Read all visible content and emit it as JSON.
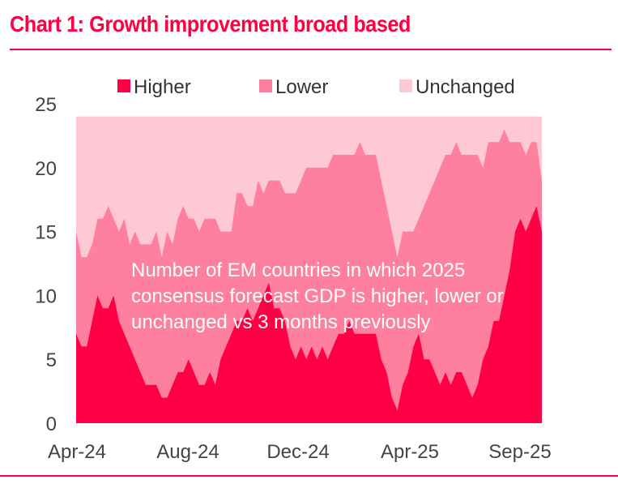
{
  "title": "Chart 1: Growth improvement broad based",
  "colors": {
    "accent": "#ff0044",
    "higher": "#ff0044",
    "lower": "#ff809e",
    "unchanged": "#ffc8d5",
    "axis_text": "#444444"
  },
  "chart_data": {
    "type": "area",
    "stacked": true,
    "title": "Chart 1: Growth improvement broad based",
    "xlabel": "",
    "ylabel": "",
    "ylim": [
      0,
      25
    ],
    "yticks": [
      0,
      5,
      10,
      15,
      20,
      25
    ],
    "xtick_labels": [
      "Apr-24",
      "Aug-24",
      "Dec-24",
      "Apr-25",
      "Sep-25"
    ],
    "xtick_positions": [
      0,
      0.222,
      0.444,
      0.667,
      0.944
    ],
    "legend": [
      "Higher",
      "Lower",
      "Unchanged"
    ],
    "legend_position": "top",
    "grid": false,
    "annotation": [
      "Number of EM countries in which 2025",
      "consensus forecast GDP is higher, lower or",
      "unchanged vs 3 months previously"
    ],
    "total": 24,
    "series": [
      {
        "name": "Higher",
        "values": [
          7,
          6,
          6,
          8,
          10,
          9,
          9,
          10,
          8,
          7,
          6,
          5,
          4,
          3,
          3,
          3,
          2,
          2,
          3,
          4,
          4,
          5,
          4,
          3,
          3,
          4,
          3,
          5,
          6,
          7,
          8,
          8,
          9,
          8,
          9,
          10,
          11,
          9,
          9,
          8,
          6,
          5,
          6,
          5,
          6,
          5,
          6,
          5,
          6,
          7,
          7,
          8,
          7,
          7,
          7,
          7,
          7,
          5,
          4,
          2,
          1,
          3,
          4,
          6,
          7,
          5,
          5,
          4,
          3,
          4,
          3,
          4,
          4,
          3,
          2,
          3,
          5,
          6,
          8,
          8,
          10,
          12,
          15,
          16,
          15,
          16,
          17,
          15
        ]
      },
      {
        "name": "Lower",
        "values": [
          8,
          7,
          7,
          6,
          6,
          7,
          8,
          6,
          7,
          9,
          8,
          10,
          10,
          11,
          11,
          12,
          11,
          13,
          11,
          12,
          13,
          11,
          12,
          12,
          13,
          12,
          13,
          10,
          9,
          8,
          10,
          10,
          8,
          9,
          10,
          8,
          8,
          10,
          10,
          10,
          12,
          13,
          13,
          15,
          14,
          15,
          14,
          15,
          15,
          14,
          14,
          13,
          14,
          15,
          14,
          14,
          14,
          14,
          13,
          13,
          12,
          12,
          11,
          9,
          9,
          12,
          13,
          15,
          17,
          17,
          18,
          18,
          17,
          18,
          19,
          18,
          15,
          16,
          14,
          14,
          13,
          10,
          7,
          6,
          6,
          6,
          5,
          4
        ]
      },
      {
        "name": "Unchanged",
        "values": [
          9,
          11,
          11,
          10,
          8,
          8,
          7,
          8,
          9,
          8,
          10,
          9,
          10,
          10,
          10,
          9,
          11,
          9,
          10,
          8,
          7,
          8,
          8,
          9,
          8,
          8,
          8,
          9,
          9,
          9,
          6,
          6,
          7,
          7,
          5,
          6,
          5,
          5,
          5,
          6,
          6,
          6,
          5,
          4,
          4,
          4,
          4,
          4,
          3,
          3,
          3,
          3,
          3,
          2,
          3,
          3,
          3,
          5,
          7,
          9,
          11,
          9,
          9,
          9,
          8,
          7,
          6,
          5,
          4,
          3,
          3,
          2,
          3,
          3,
          3,
          3,
          4,
          2,
          2,
          2,
          1,
          2,
          2,
          2,
          3,
          2,
          2,
          5
        ]
      }
    ]
  }
}
